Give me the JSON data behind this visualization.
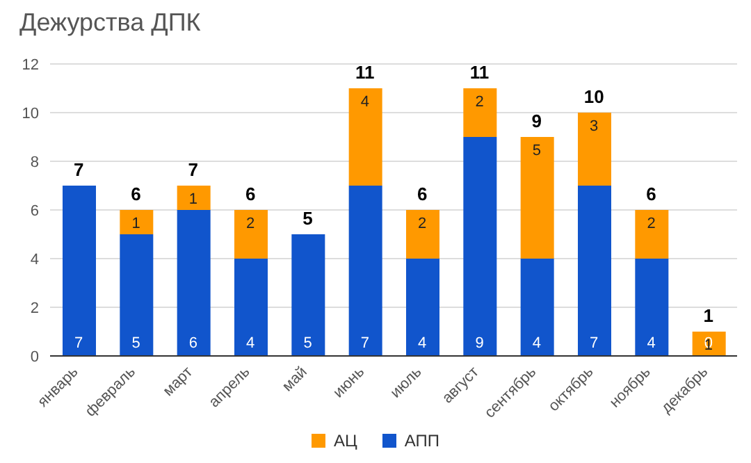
{
  "chart_data": {
    "type": "bar",
    "title": "Дежурства ДПК",
    "stacked": true,
    "categories": [
      "январь",
      "февраль",
      "март",
      "апрель",
      "май",
      "июнь",
      "июль",
      "август",
      "сентябрь",
      "октябрь",
      "ноябрь",
      "декабрь"
    ],
    "series": [
      {
        "name": "АПП",
        "color": "#1155cc",
        "values": [
          7,
          5,
          6,
          4,
          5,
          7,
          4,
          9,
          4,
          7,
          4,
          0
        ],
        "value_labels": [
          "7",
          "5",
          "6",
          "4",
          "5",
          "7",
          "4",
          "9",
          "4",
          "7",
          "4",
          "0"
        ]
      },
      {
        "name": "АЦ",
        "color": "#ff9900",
        "values": [
          0,
          1,
          1,
          2,
          0,
          4,
          2,
          2,
          5,
          3,
          2,
          1
        ],
        "value_labels": [
          null,
          "1",
          "1",
          "2",
          null,
          "4",
          "2",
          "2",
          "5",
          "3",
          "2",
          "1"
        ]
      }
    ],
    "totals": [
      "7",
      "6",
      "7",
      "6",
      "5",
      "11",
      "6",
      "11",
      "9",
      "10",
      "6",
      "1"
    ],
    "ylim": [
      0,
      12
    ],
    "yticks": [
      0,
      2,
      4,
      6,
      8,
      10,
      12
    ],
    "grid": "y",
    "legend": "bottom"
  }
}
